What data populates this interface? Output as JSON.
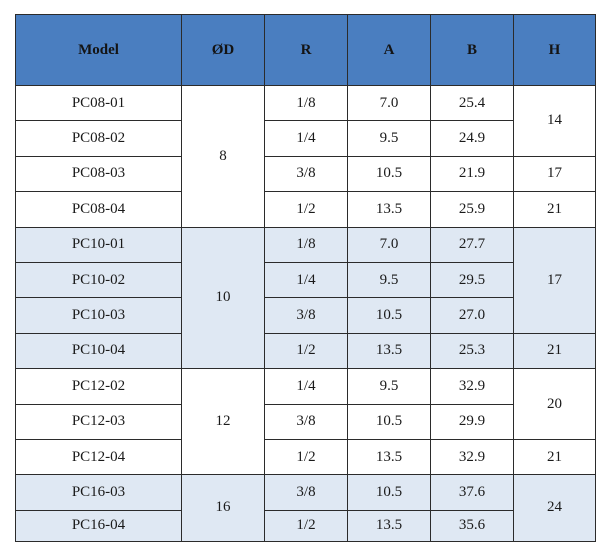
{
  "headers": [
    "Model",
    "ØD",
    "R",
    "A",
    "B",
    "H"
  ],
  "groups": [
    {
      "od": "8",
      "rows": [
        {
          "model": "PC08-01",
          "r": "1/8",
          "a": "7.0",
          "b": "25.4"
        },
        {
          "model": "PC08-02",
          "r": "1/4",
          "a": "9.5",
          "b": "24.9"
        },
        {
          "model": "PC08-03",
          "r": "3/8",
          "a": "10.5",
          "b": "21.9"
        },
        {
          "model": "PC08-04",
          "r": "1/2",
          "a": "13.5",
          "b": "25.9"
        }
      ],
      "h": [
        "14",
        "17",
        "21"
      ]
    },
    {
      "od": "10",
      "rows": [
        {
          "model": "PC10-01",
          "r": "1/8",
          "a": "7.0",
          "b": "27.7"
        },
        {
          "model": "PC10-02",
          "r": "1/4",
          "a": "9.5",
          "b": "29.5"
        },
        {
          "model": "PC10-03",
          "r": "3/8",
          "a": "10.5",
          "b": "27.0"
        },
        {
          "model": "PC10-04",
          "r": "1/2",
          "a": "13.5",
          "b": "25.3"
        }
      ],
      "h": [
        "17",
        "21"
      ]
    },
    {
      "od": "12",
      "rows": [
        {
          "model": "PC12-02",
          "r": "1/4",
          "a": "9.5",
          "b": "32.9"
        },
        {
          "model": "PC12-03",
          "r": "3/8",
          "a": "10.5",
          "b": "29.9"
        },
        {
          "model": "PC12-04",
          "r": "1/2",
          "a": "13.5",
          "b": "32.9"
        }
      ],
      "h": [
        "20",
        "21"
      ]
    },
    {
      "od": "16",
      "rows": [
        {
          "model": "PC16-03",
          "r": "3/8",
          "a": "10.5",
          "b": "37.6"
        },
        {
          "model": "PC16-04",
          "r": "1/2",
          "a": "13.5",
          "b": "35.6"
        }
      ],
      "h": [
        "24"
      ]
    }
  ]
}
